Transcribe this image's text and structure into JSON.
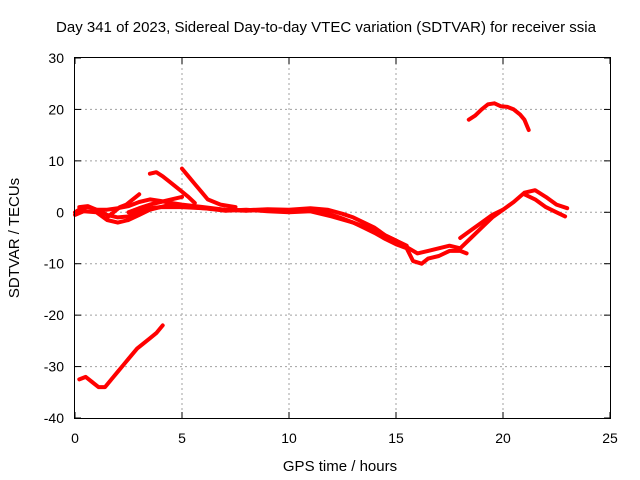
{
  "chart_data": {
    "type": "line",
    "title": "Day 341 of 2023, Sidereal Day-to-day VTEC variation (SDTVAR) for receiver ssia",
    "xlabel": "GPS time / hours",
    "ylabel": "SDTVAR / TECUs",
    "xlim": [
      0,
      25
    ],
    "ylim": [
      -40,
      30
    ],
    "xticks": [
      0,
      5,
      10,
      15,
      20,
      25
    ],
    "yticks": [
      -40,
      -30,
      -20,
      -10,
      0,
      10,
      20,
      30
    ],
    "grid": true,
    "series_color": "#ff0000",
    "series": [
      {
        "name": "arc-low-left",
        "x": [
          0.2,
          0.5,
          0.8,
          1.1,
          1.4,
          1.7,
          2.0,
          2.3,
          2.6,
          2.9,
          3.2,
          3.5,
          3.8,
          4.1
        ],
        "y": [
          -32.5,
          -32.0,
          -33.0,
          -34.0,
          -34.0,
          -32.5,
          -31.0,
          -29.5,
          -28.0,
          -26.5,
          -25.5,
          -24.5,
          -23.5,
          -22.0
        ]
      },
      {
        "name": "arc-main-a",
        "x": [
          0.0,
          0.3,
          0.6,
          1.0,
          1.5,
          2.0,
          2.5,
          3.0,
          3.5,
          4.0,
          4.5,
          5.0,
          6.0,
          7.0,
          8.0,
          9.0,
          10.0,
          11.0,
          11.5,
          12.0,
          12.5,
          13.0,
          13.5,
          14.0,
          14.5,
          15.0,
          15.5,
          15.8,
          16.2,
          16.5,
          17.0,
          17.5,
          18.0,
          18.3
        ],
        "y": [
          0.0,
          0.8,
          1.0,
          0.5,
          -0.5,
          -1.0,
          -0.8,
          0.2,
          0.8,
          1.0,
          1.5,
          1.2,
          0.8,
          0.5,
          0.3,
          0.5,
          0.3,
          0.4,
          0.2,
          -0.5,
          -1.2,
          -2.0,
          -3.0,
          -4.0,
          -5.2,
          -6.2,
          -7.0,
          -9.5,
          -10.0,
          -9.0,
          -8.5,
          -7.5,
          -7.5,
          -8.0
        ]
      },
      {
        "name": "arc-main-b",
        "x": [
          0.0,
          0.4,
          1.0,
          1.5,
          2.0,
          2.5,
          3.0,
          3.5,
          4.0,
          5.0,
          6.0,
          7.0,
          8.0,
          9.0,
          10.0,
          11.0,
          12.0,
          13.0,
          14.0,
          15.0,
          15.6,
          16.0,
          16.5,
          17.0,
          17.5,
          18.0,
          18.5,
          19.0,
          19.5,
          20.0
        ],
        "y": [
          -0.5,
          0.2,
          0.0,
          -1.5,
          -2.0,
          -1.5,
          -0.5,
          0.5,
          1.0,
          1.0,
          0.8,
          0.3,
          0.5,
          0.2,
          0.0,
          0.2,
          -0.8,
          -2.0,
          -3.5,
          -5.5,
          -7.0,
          -8.0,
          -7.5,
          -7.0,
          -6.5,
          -7.0,
          -5.0,
          -3.0,
          -1.0,
          0.5
        ]
      },
      {
        "name": "arc-main-c",
        "x": [
          0.2,
          0.6,
          1.0,
          1.5,
          2.0,
          2.5,
          3.0,
          3.5,
          4.0,
          4.5,
          5.0,
          6.0,
          7.0,
          8.0,
          9.0,
          10.0,
          11.0,
          11.8,
          12.5,
          13.0,
          13.5,
          14.0,
          14.5,
          15.0,
          15.5
        ],
        "y": [
          1.0,
          1.2,
          0.5,
          0.5,
          0.8,
          1.2,
          2.0,
          2.5,
          2.2,
          1.8,
          1.5,
          1.0,
          0.5,
          0.4,
          0.6,
          0.5,
          0.8,
          0.5,
          -0.3,
          -1.0,
          -2.0,
          -3.0,
          -4.5,
          -5.5,
          -6.5
        ]
      },
      {
        "name": "arc-spur-1",
        "x": [
          1.5,
          1.8,
          2.1,
          2.4,
          2.7,
          3.0
        ],
        "y": [
          -1.0,
          0.0,
          1.0,
          1.5,
          2.5,
          3.5
        ]
      },
      {
        "name": "arc-spur-2",
        "x": [
          3.5,
          3.8,
          4.1,
          4.4,
          4.7,
          5.0,
          5.3,
          5.6
        ],
        "y": [
          7.5,
          7.8,
          7.0,
          6.0,
          5.0,
          4.0,
          3.0,
          1.8
        ]
      },
      {
        "name": "arc-spur-3",
        "x": [
          5.0,
          5.3,
          5.6,
          5.9,
          6.2,
          6.8,
          7.5
        ],
        "y": [
          8.5,
          7.0,
          5.5,
          4.0,
          2.5,
          1.5,
          1.0
        ]
      },
      {
        "name": "arc-spur-4",
        "x": [
          2.5,
          3.0,
          3.5,
          4.0,
          4.5,
          5.0
        ],
        "y": [
          0.0,
          0.8,
          1.5,
          2.0,
          2.5,
          3.0
        ]
      },
      {
        "name": "arc-right-a",
        "x": [
          18.0,
          18.5,
          19.0,
          19.5,
          20.0,
          20.5,
          21.0,
          21.5,
          22.0,
          22.5,
          23.0
        ],
        "y": [
          -5.0,
          -3.5,
          -2.0,
          -0.5,
          0.5,
          2.0,
          3.8,
          4.3,
          3.0,
          1.5,
          0.8
        ]
      },
      {
        "name": "arc-right-b",
        "x": [
          21.0,
          21.5,
          22.0,
          22.5,
          22.9
        ],
        "y": [
          3.5,
          2.5,
          1.0,
          0.0,
          -0.8
        ]
      },
      {
        "name": "arc-high-right",
        "x": [
          18.4,
          18.7,
          19.0,
          19.3,
          19.6,
          19.9,
          20.2,
          20.5,
          20.8,
          21.0,
          21.2
        ],
        "y": [
          18.0,
          18.8,
          20.0,
          21.0,
          21.2,
          20.6,
          20.5,
          20.0,
          19.0,
          18.0,
          16.0
        ]
      }
    ]
  }
}
